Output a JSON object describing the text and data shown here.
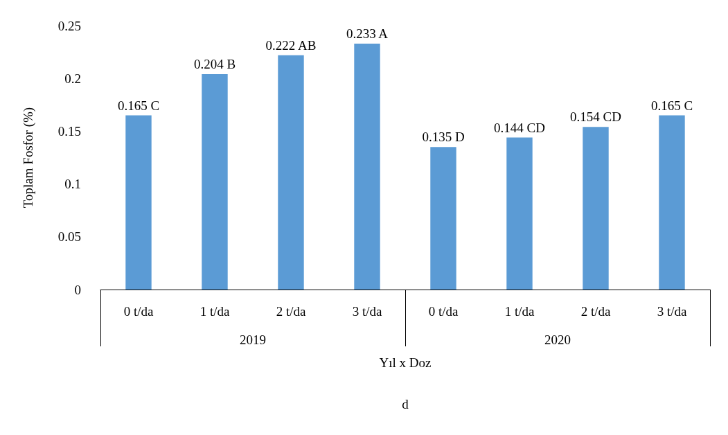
{
  "chart_data": {
    "type": "bar",
    "ylabel": "Toplam Fosfor (%)",
    "xlabel": "Yıl x Doz",
    "categories": [
      "0 t/da",
      "1 t/da",
      "2 t/da",
      "3 t/da",
      "0 t/da",
      "1 t/da",
      "2 t/da",
      "3 t/da"
    ],
    "values": [
      0.165,
      0.204,
      0.222,
      0.233,
      0.135,
      0.144,
      0.154,
      0.165
    ],
    "value_labels": [
      "0.165 C",
      "0.204 B",
      "0.222 AB",
      "0.233 A",
      "0.135 D",
      "0.144 CD",
      "0.154 CD",
      "0.165 C"
    ],
    "color": "#5b9bd5",
    "ylim": [
      0,
      0.25
    ],
    "yticks": [
      0,
      0.05,
      0.1,
      0.15,
      0.2,
      0.25
    ],
    "grid": false,
    "annotations": [
      "2019",
      "2020",
      "d"
    ]
  }
}
